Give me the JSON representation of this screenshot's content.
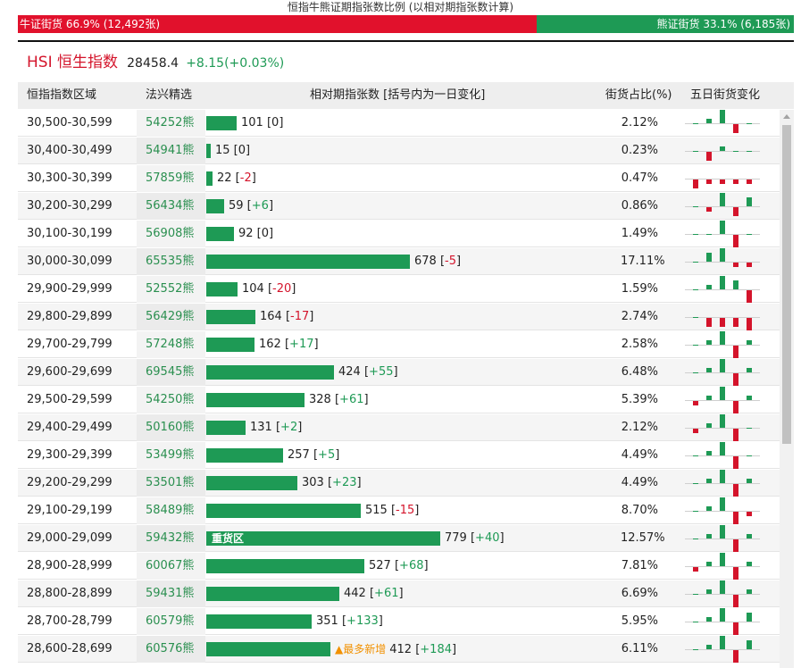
{
  "header": {
    "title": "恒指牛熊证期指张数比例 (以相对期指张数计算)",
    "bull_label": "牛证街货 66.9% (12,492张)",
    "bull_pct": 66.9,
    "bear_label": "熊证街货 33.1% (6,185张)",
    "bear_pct": 33.1,
    "bull_color": "#e1112c",
    "bear_color": "#1e9a55"
  },
  "index": {
    "name": "HSI 恒生指数",
    "price": "28458.4",
    "change": "+8.15(+0.03%)"
  },
  "columns": {
    "range": "恒指指数区域",
    "pick": "法兴精选",
    "contracts": "相对期指张数 [括号内为一日变化]",
    "share": "街货占比(%)",
    "five_day": "五日街货变化"
  },
  "labels": {
    "heavy_zone": "重货区",
    "most_new": "▲最多新增"
  },
  "rows": [
    {
      "range": "30,500-30,599",
      "code": "54252熊",
      "contracts": 101,
      "change": "0",
      "pct": "2.12%",
      "five": [
        0,
        1,
        3,
        -2,
        0
      ]
    },
    {
      "range": "30,400-30,499",
      "code": "54941熊",
      "contracts": 15,
      "change": "0",
      "pct": "0.23%",
      "five": [
        0,
        -2,
        1,
        0,
        0
      ]
    },
    {
      "range": "30,300-30,399",
      "code": "57859熊",
      "contracts": 22,
      "change": "-2",
      "pct": "0.47%",
      "five": [
        -2,
        -1,
        -1,
        -1,
        -1
      ]
    },
    {
      "range": "30,200-30,299",
      "code": "56434熊",
      "contracts": 59,
      "change": "+6",
      "pct": "0.86%",
      "five": [
        0,
        -1,
        3,
        -2,
        2
      ]
    },
    {
      "range": "30,100-30,199",
      "code": "56908熊",
      "contracts": 92,
      "change": "0",
      "pct": "1.49%",
      "five": [
        0,
        0,
        3,
        -3,
        0
      ]
    },
    {
      "range": "30,000-30,099",
      "code": "65535熊",
      "contracts": 678,
      "change": "-5",
      "pct": "17.11%",
      "five": [
        0,
        2,
        3,
        -1,
        -1
      ]
    },
    {
      "range": "29,900-29,999",
      "code": "52552熊",
      "contracts": 104,
      "change": "-20",
      "pct": "1.59%",
      "five": [
        0,
        1,
        3,
        2,
        -3
      ]
    },
    {
      "range": "29,800-29,899",
      "code": "56429熊",
      "contracts": 164,
      "change": "-17",
      "pct": "2.74%",
      "five": [
        0,
        -2,
        -2,
        -2,
        -3
      ]
    },
    {
      "range": "29,700-29,799",
      "code": "57248熊",
      "contracts": 162,
      "change": "+17",
      "pct": "2.58%",
      "five": [
        0,
        1,
        3,
        -3,
        1
      ]
    },
    {
      "range": "29,600-29,699",
      "code": "69545熊",
      "contracts": 424,
      "change": "+55",
      "pct": "6.48%",
      "five": [
        0,
        1,
        3,
        -3,
        1
      ]
    },
    {
      "range": "29,500-29,599",
      "code": "54250熊",
      "contracts": 328,
      "change": "+61",
      "pct": "5.39%",
      "five": [
        -1,
        1,
        3,
        -3,
        1
      ]
    },
    {
      "range": "29,400-29,499",
      "code": "50160熊",
      "contracts": 131,
      "change": "+2",
      "pct": "2.12%",
      "five": [
        -1,
        1,
        3,
        -3,
        0
      ]
    },
    {
      "range": "29,300-29,399",
      "code": "53499熊",
      "contracts": 257,
      "change": "+5",
      "pct": "4.49%",
      "five": [
        0,
        1,
        3,
        -3,
        0
      ]
    },
    {
      "range": "29,200-29,299",
      "code": "53501熊",
      "contracts": 303,
      "change": "+23",
      "pct": "4.49%",
      "five": [
        0,
        1,
        3,
        -3,
        1
      ]
    },
    {
      "range": "29,100-29,199",
      "code": "58489熊",
      "contracts": 515,
      "change": "-15",
      "pct": "8.70%",
      "five": [
        0,
        1,
        3,
        -3,
        -1
      ]
    },
    {
      "range": "29,000-29,099",
      "code": "59432熊",
      "contracts": 779,
      "change": "+40",
      "pct": "12.57%",
      "five": [
        0,
        1,
        3,
        -3,
        1
      ],
      "heavy": true
    },
    {
      "range": "28,900-28,999",
      "code": "60067熊",
      "contracts": 527,
      "change": "+68",
      "pct": "7.81%",
      "five": [
        -1,
        1,
        3,
        -3,
        1
      ]
    },
    {
      "range": "28,800-28,899",
      "code": "59431熊",
      "contracts": 442,
      "change": "+61",
      "pct": "6.69%",
      "five": [
        0,
        1,
        3,
        -3,
        1
      ]
    },
    {
      "range": "28,700-28,799",
      "code": "60579熊",
      "contracts": 351,
      "change": "+133",
      "pct": "5.95%",
      "five": [
        0,
        1,
        3,
        -3,
        2
      ]
    },
    {
      "range": "28,600-28,699",
      "code": "60576熊",
      "contracts": 412,
      "change": "+184",
      "pct": "6.11%",
      "five": [
        0,
        1,
        3,
        -3,
        2
      ],
      "most_new": true
    }
  ]
}
